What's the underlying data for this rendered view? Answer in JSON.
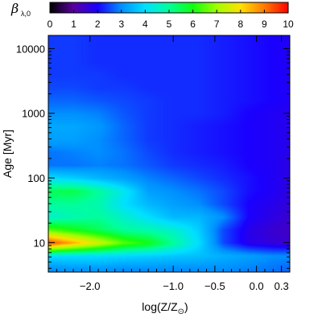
{
  "chart_data": {
    "type": "heatmap",
    "title": "",
    "colorbar": {
      "label": "β",
      "label_sub": "λ,0",
      "min": 0,
      "max": 10,
      "ticks": [
        "0",
        "1",
        "2",
        "3",
        "4",
        "5",
        "6",
        "7",
        "8",
        "9",
        "10"
      ],
      "colormap": "rainbow (black–purple–blue–cyan–green–yellow–red)"
    },
    "xlabel": {
      "prefix": "log(Z/Z",
      "sub": "⊙",
      "suffix": ")"
    },
    "ylabel": {
      "main": "Age ",
      "unit": "[Myr]"
    },
    "x_axis": {
      "scale": "linear",
      "range": [
        -2.5,
        0.4
      ],
      "ticks": [
        {
          "value": -2.0,
          "label": "−2.0"
        },
        {
          "value": -1.0,
          "label": "−1.0"
        },
        {
          "value": -0.5,
          "label": "−0.5"
        },
        {
          "value": 0.0,
          "label": "0.0"
        },
        {
          "value": 0.3,
          "label": "0.3"
        }
      ]
    },
    "y_axis": {
      "scale": "log",
      "range": [
        3.5,
        16000
      ],
      "ticks": [
        {
          "value": 10,
          "label": "10"
        },
        {
          "value": 100,
          "label": "100"
        },
        {
          "value": 1000,
          "label": "1000"
        },
        {
          "value": 10000,
          "label": "10000"
        }
      ]
    },
    "surface_description_values": {
      "x": [
        -2.5,
        -2.2,
        -1.9,
        -1.6,
        -1.3,
        -1.0,
        -0.7,
        -0.4,
        -0.1,
        0.2,
        0.4
      ],
      "log_age_myr": [
        0.6,
        0.8,
        1.0,
        1.2,
        1.4,
        1.6,
        1.8,
        2.0,
        2.2,
        2.4,
        2.6,
        2.8,
        3.0,
        3.2,
        3.4,
        3.6,
        3.8,
        4.0,
        4.2
      ],
      "z": [
        [
          3.0,
          3.1,
          3.1,
          3.0,
          3.0,
          3.0,
          3.0,
          3.0,
          2.9,
          2.8,
          2.7
        ],
        [
          4.0,
          4.0,
          4.0,
          3.9,
          3.8,
          3.7,
          3.6,
          3.4,
          3.2,
          3.0,
          3.0
        ],
        [
          9.5,
          8.5,
          7.5,
          6.5,
          6.0,
          5.0,
          4.0,
          2.5,
          1.8,
          1.6,
          1.5
        ],
        [
          6.5,
          6.0,
          5.5,
          5.0,
          4.8,
          4.5,
          3.8,
          2.5,
          1.8,
          1.5,
          1.4
        ],
        [
          4.5,
          4.8,
          5.0,
          4.5,
          4.0,
          3.5,
          3.5,
          3.0,
          2.0,
          1.7,
          1.5
        ],
        [
          5.0,
          5.0,
          4.8,
          4.0,
          3.5,
          3.2,
          3.0,
          2.5,
          2.0,
          1.8,
          1.6
        ],
        [
          5.5,
          5.6,
          5.0,
          4.2,
          3.2,
          3.0,
          2.8,
          2.5,
          2.1,
          1.9,
          1.7
        ],
        [
          4.0,
          3.8,
          3.5,
          3.2,
          2.9,
          2.7,
          2.5,
          2.3,
          2.1,
          1.9,
          1.7
        ],
        [
          2.8,
          2.8,
          2.9,
          2.8,
          2.6,
          2.4,
          2.3,
          2.2,
          2.0,
          1.9,
          1.7
        ],
        [
          2.8,
          2.9,
          3.0,
          2.8,
          2.5,
          2.3,
          2.2,
          2.1,
          2.0,
          1.9,
          1.8
        ],
        [
          3.2,
          3.2,
          3.0,
          2.7,
          2.4,
          2.3,
          2.2,
          2.1,
          2.0,
          1.9,
          1.8
        ],
        [
          3.3,
          3.3,
          3.1,
          2.7,
          2.4,
          2.3,
          2.2,
          2.1,
          2.0,
          1.9,
          1.8
        ],
        [
          3.0,
          3.0,
          2.9,
          2.6,
          2.4,
          2.3,
          2.3,
          2.2,
          2.0,
          1.9,
          1.8
        ],
        [
          2.7,
          2.7,
          2.6,
          2.5,
          2.4,
          2.3,
          2.3,
          2.2,
          2.1,
          2.0,
          1.9
        ],
        [
          2.5,
          2.5,
          2.4,
          2.4,
          2.3,
          2.3,
          2.3,
          2.2,
          2.1,
          2.0,
          1.9
        ],
        [
          2.4,
          2.4,
          2.4,
          2.3,
          2.3,
          2.3,
          2.3,
          2.2,
          2.1,
          2.0,
          1.9
        ],
        [
          2.4,
          2.4,
          2.3,
          2.3,
          2.3,
          2.3,
          2.3,
          2.2,
          2.1,
          2.0,
          1.9
        ],
        [
          2.4,
          2.4,
          2.3,
          2.3,
          2.3,
          2.3,
          2.3,
          2.2,
          2.1,
          2.0,
          1.9
        ],
        [
          2.4,
          2.4,
          2.3,
          2.3,
          2.3,
          2.3,
          2.3,
          2.2,
          2.1,
          2.0,
          1.9
        ]
      ]
    }
  }
}
